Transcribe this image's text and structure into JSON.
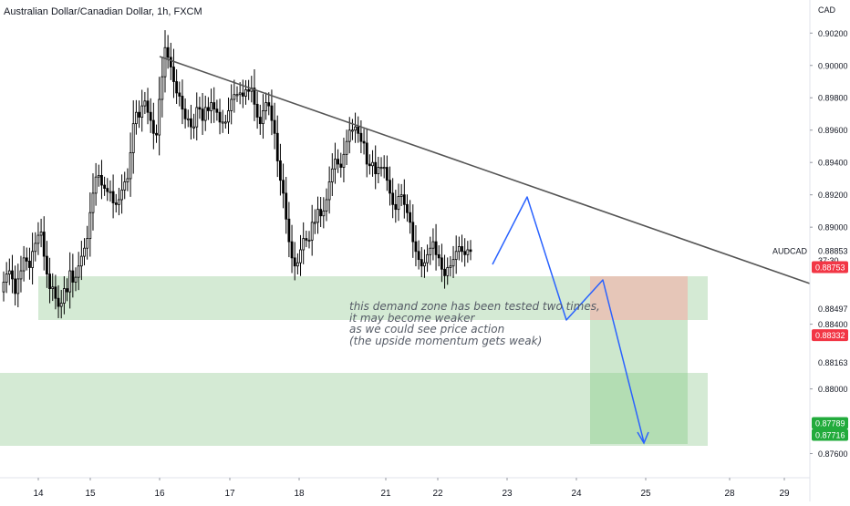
{
  "title": "Australian Dollar/Canadian Dollar, 1h, FXCM",
  "currency": "CAD",
  "annotation_lines": [
    "this demand zone has been tested two times,",
    "it may become weaker",
    "as we could see price action",
    "(the upside momentum gets weak)"
  ],
  "colors": {
    "up": "#ffffff",
    "down": "#000000",
    "wick": "#000000",
    "demand_zone": "#d4ead4",
    "stop_zone": "#e6c6b8",
    "target_zone": "#cde7cd",
    "target_zone_dark": "#b3ddb3",
    "trendline": "#555555",
    "projection": "#2962ff",
    "badge_red": "#f23645",
    "badge_green": "#22ab3c"
  },
  "chart_data": {
    "type": "candlestick",
    "symbol": "AUDCAD",
    "timeframe": "1h",
    "ylim": [
      0.874,
      0.9032
    ],
    "y_ticks": [
      0.902,
      0.9,
      0.898,
      0.896,
      0.894,
      0.892,
      0.89,
      0.884,
      0.88,
      0.876
    ],
    "y_tick_labels": [
      "0.90200",
      "0.90000",
      "0.89800",
      "0.89600",
      "0.89400",
      "0.89200",
      "0.89000",
      "0.88400",
      "0.88000",
      "0.87600"
    ],
    "x_labels": [
      "14",
      "15",
      "16",
      "17",
      "18",
      "21",
      "22",
      "23",
      "24",
      "25",
      "28",
      "29"
    ],
    "price_labels": [
      {
        "text": "0.88853",
        "style": "plain",
        "value": 0.88853
      },
      {
        "text": "37:30",
        "style": "plain",
        "value": 0.88795
      },
      {
        "text": "0.88753",
        "style": "red",
        "value": 0.88753
      },
      {
        "text": "0.88497",
        "style": "plain",
        "value": 0.88497
      },
      {
        "text": "0.88332",
        "style": "red",
        "value": 0.88332
      },
      {
        "text": "0.88163",
        "style": "plain",
        "value": 0.88163
      },
      {
        "text": "0.87789",
        "style": "green",
        "value": 0.87789
      },
      {
        "text": "0.87716",
        "style": "green",
        "value": 0.87716
      }
    ],
    "symbol_label": "AUDCAD",
    "closes": [
      0.8866,
      0.8871,
      0.8873,
      0.8868,
      0.8859,
      0.8868,
      0.8873,
      0.8881,
      0.8879,
      0.8875,
      0.8885,
      0.889,
      0.8895,
      0.8897,
      0.8882,
      0.8871,
      0.8862,
      0.8863,
      0.8856,
      0.8851,
      0.8853,
      0.8862,
      0.886,
      0.8873,
      0.8866,
      0.8869,
      0.8876,
      0.8882,
      0.8887,
      0.8893,
      0.8909,
      0.8921,
      0.8931,
      0.8932,
      0.8926,
      0.8924,
      0.8922,
      0.8922,
      0.8915,
      0.8914,
      0.8917,
      0.8923,
      0.8928,
      0.893,
      0.8946,
      0.8964,
      0.8971,
      0.8968,
      0.8975,
      0.8978,
      0.8971,
      0.8966,
      0.8958,
      0.8957,
      0.8979,
      0.8993,
      0.9011,
      0.9005,
      0.8999,
      0.899,
      0.8983,
      0.8981,
      0.8973,
      0.8967,
      0.8967,
      0.8962,
      0.8962,
      0.8974,
      0.8973,
      0.8966,
      0.8974,
      0.8972,
      0.8977,
      0.8973,
      0.8971,
      0.8965,
      0.8965,
      0.8965,
      0.8972,
      0.8979,
      0.8982,
      0.8982,
      0.8983,
      0.8981,
      0.8985,
      0.8984,
      0.8986,
      0.8976,
      0.8968,
      0.8964,
      0.8972,
      0.8977,
      0.8975,
      0.8966,
      0.8958,
      0.8941,
      0.8929,
      0.8921,
      0.8905,
      0.8891,
      0.8881,
      0.8876,
      0.8878,
      0.8886,
      0.8893,
      0.8892,
      0.8892,
      0.8903,
      0.8903,
      0.8911,
      0.8907,
      0.891,
      0.8917,
      0.8928,
      0.8936,
      0.8942,
      0.8939,
      0.8937,
      0.8945,
      0.8953,
      0.896,
      0.896,
      0.8962,
      0.8958,
      0.8953,
      0.8952,
      0.8939,
      0.8938,
      0.894,
      0.8933,
      0.8937,
      0.8937,
      0.8937,
      0.8929,
      0.8921,
      0.8914,
      0.8911,
      0.8919,
      0.892,
      0.8914,
      0.8909,
      0.8903,
      0.8891,
      0.8885,
      0.888,
      0.8876,
      0.8878,
      0.8883,
      0.8887,
      0.8891,
      0.8883,
      0.8881,
      0.8874,
      0.887,
      0.8875,
      0.8876,
      0.888,
      0.8885,
      0.8888,
      0.8885,
      0.8883,
      0.8886,
      0.8885
    ]
  }
}
